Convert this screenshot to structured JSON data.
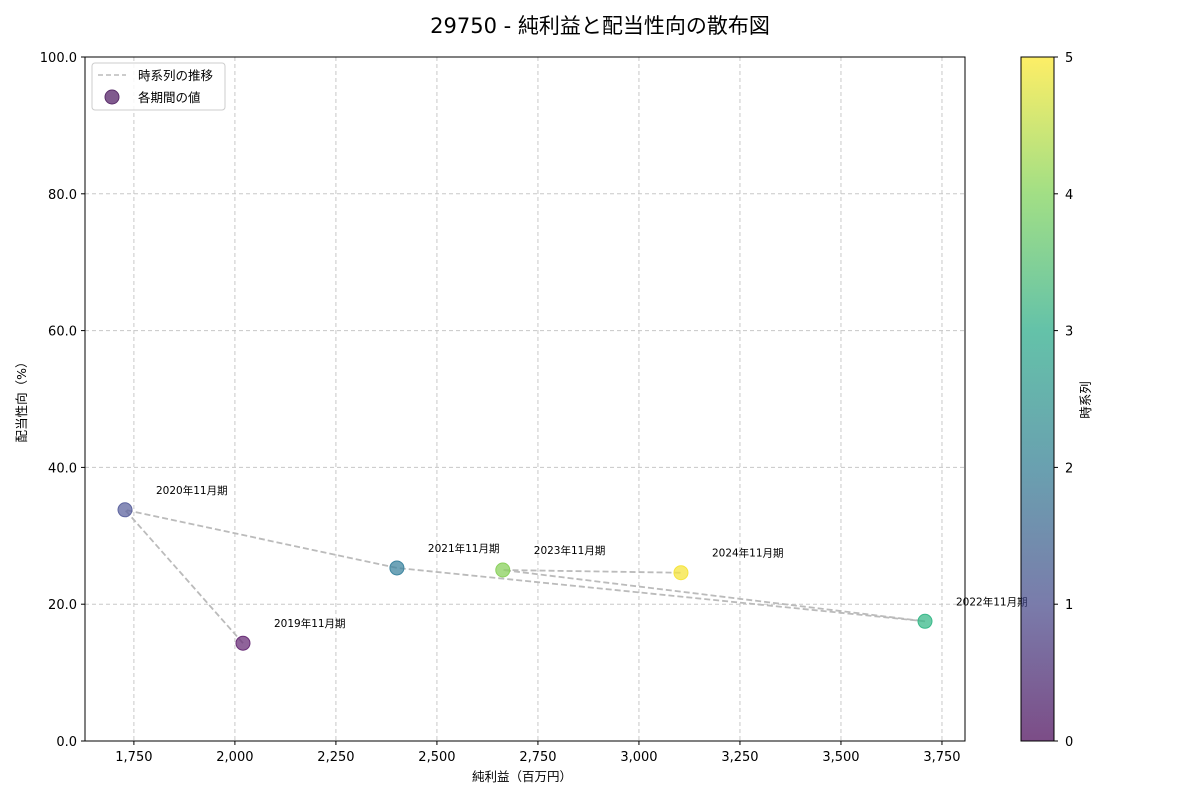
{
  "chart_data": {
    "type": "scatter",
    "title": "29750 - 純利益と配当性向の散布図",
    "xlabel": "純利益（百万円）",
    "ylabel": "配当性向（%）",
    "xlim": [
      1629,
      3807
    ],
    "ylim": [
      0,
      100
    ],
    "grid": true,
    "x_ticks": [
      1750,
      2000,
      2250,
      2500,
      2750,
      3000,
      3250,
      3500,
      3750
    ],
    "x_tick_labels": [
      "1,750",
      "2,000",
      "2,250",
      "2,500",
      "2,750",
      "3,000",
      "3,250",
      "3,500",
      "3,750"
    ],
    "y_ticks": [
      0,
      20,
      40,
      60,
      80,
      100
    ],
    "y_tick_labels": [
      "0.0",
      "20.0",
      "40.0",
      "60.0",
      "80.0",
      "100.0"
    ],
    "legend": {
      "position": "upper left",
      "entries": [
        {
          "label": "時系列の推移",
          "kind": "dashed-line",
          "color": "#bbbbbb"
        },
        {
          "label": "各期間の値",
          "kind": "marker",
          "color": "#6a3d7a"
        }
      ]
    },
    "colorbar": {
      "label": "時系列",
      "range": [
        0,
        5
      ],
      "ticks": [
        "0",
        "1",
        "2",
        "3",
        "4",
        "5"
      ],
      "colormap": "viridis"
    },
    "points": [
      {
        "label": "2019年11月期",
        "x": 2020,
        "y": 14.3,
        "t": 0,
        "color": "#6a2f78"
      },
      {
        "label": "2020年11月期",
        "x": 1728,
        "y": 33.8,
        "t": 1,
        "color": "#5f66a0"
      },
      {
        "label": "2021年11月期",
        "x": 2401,
        "y": 25.3,
        "t": 2,
        "color": "#3f86a0"
      },
      {
        "label": "2022年11月期",
        "x": 3708,
        "y": 17.5,
        "t": 3,
        "color": "#3ab98a"
      },
      {
        "label": "2023年11月期",
        "x": 2663,
        "y": 25.0,
        "t": 4,
        "color": "#8ad05c"
      },
      {
        "label": "2024年11月期",
        "x": 3104,
        "y": 24.6,
        "t": 5,
        "color": "#f5e43e"
      }
    ]
  }
}
